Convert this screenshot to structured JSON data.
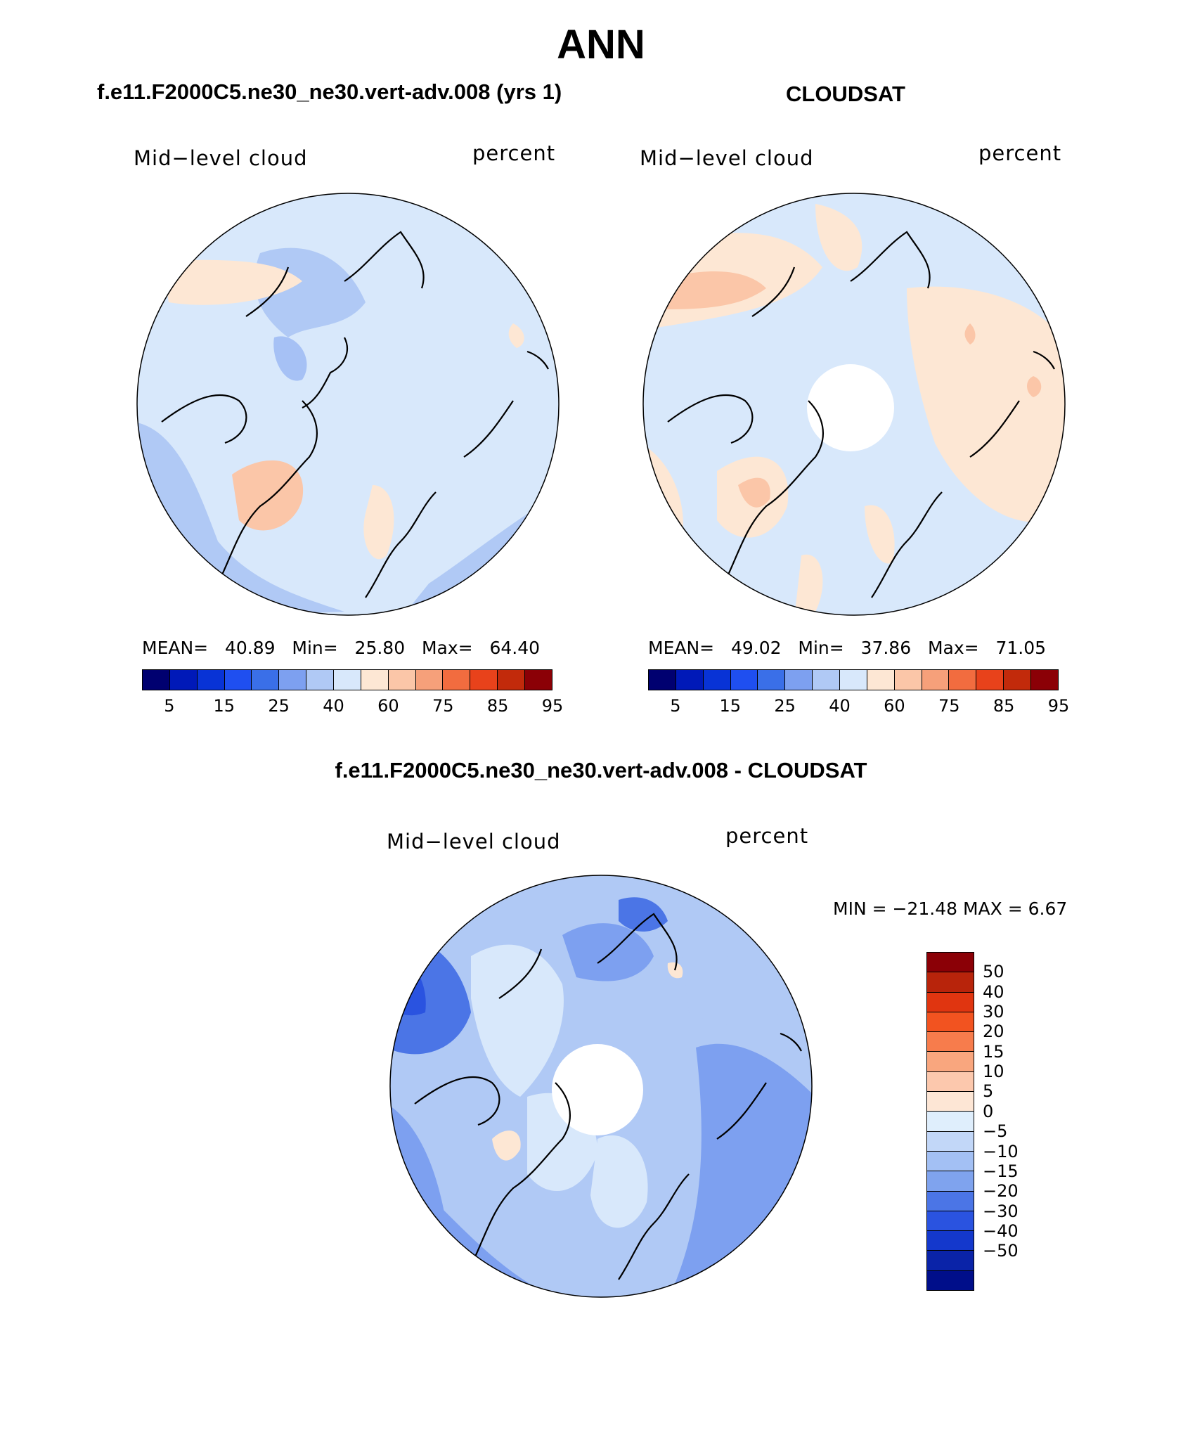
{
  "title": "ANN",
  "panels": [
    {
      "title": "f.e11.F2000C5.ne30_ne30.vert-adv.008 (yrs 1)",
      "variable": "Mid−level cloud",
      "units": "percent",
      "stats": {
        "mean_label": "MEAN=",
        "mean": "40.89",
        "min_label": "Min=",
        "min": "25.80",
        "max_label": "Max=",
        "max": "64.40"
      }
    },
    {
      "title": "CLOUDSAT",
      "variable": "Mid−level cloud",
      "units": "percent",
      "stats": {
        "mean_label": "MEAN=",
        "mean": "49.02",
        "min_label": "Min=",
        "min": "37.86",
        "max_label": "Max=",
        "max": "71.05"
      }
    }
  ],
  "diff_panel": {
    "title": "f.e11.F2000C5.ne30_ne30.vert-adv.008 - CLOUDSAT",
    "variable": "Mid−level cloud",
    "units": "percent",
    "minmax": "MIN = −21.48  MAX =    6.67"
  },
  "colorbar_main": {
    "colors": [
      "#000070",
      "#0019b8",
      "#0833d6",
      "#1f4ff0",
      "#3a6fe8",
      "#7da0f0",
      "#b0c9f5",
      "#d8e8fb",
      "#fde7d4",
      "#fbc6a8",
      "#f6a07a",
      "#f26c3f",
      "#e8421b",
      "#c22a0b",
      "#8b0006"
    ],
    "tick_labels": [
      "5",
      "15",
      "25",
      "40",
      "60",
      "75",
      "85",
      "95"
    ]
  },
  "colorbar_diff": {
    "colors": [
      "#8b0006",
      "#b8240b",
      "#e03510",
      "#f25320",
      "#f77c4c",
      "#f9a67e",
      "#fcc8ad",
      "#fde6d5",
      "#dfeefc",
      "#c2d7f8",
      "#a3c0f4",
      "#7fa3ee",
      "#4b75e6",
      "#2a53e0",
      "#1438cc",
      "#0a23a8",
      "#000e8a"
    ],
    "tick_labels": [
      "50",
      "40",
      "30",
      "20",
      "15",
      "10",
      "5",
      "0",
      "−5",
      "−10",
      "−15",
      "−20",
      "−30",
      "−40",
      "−50"
    ]
  }
}
